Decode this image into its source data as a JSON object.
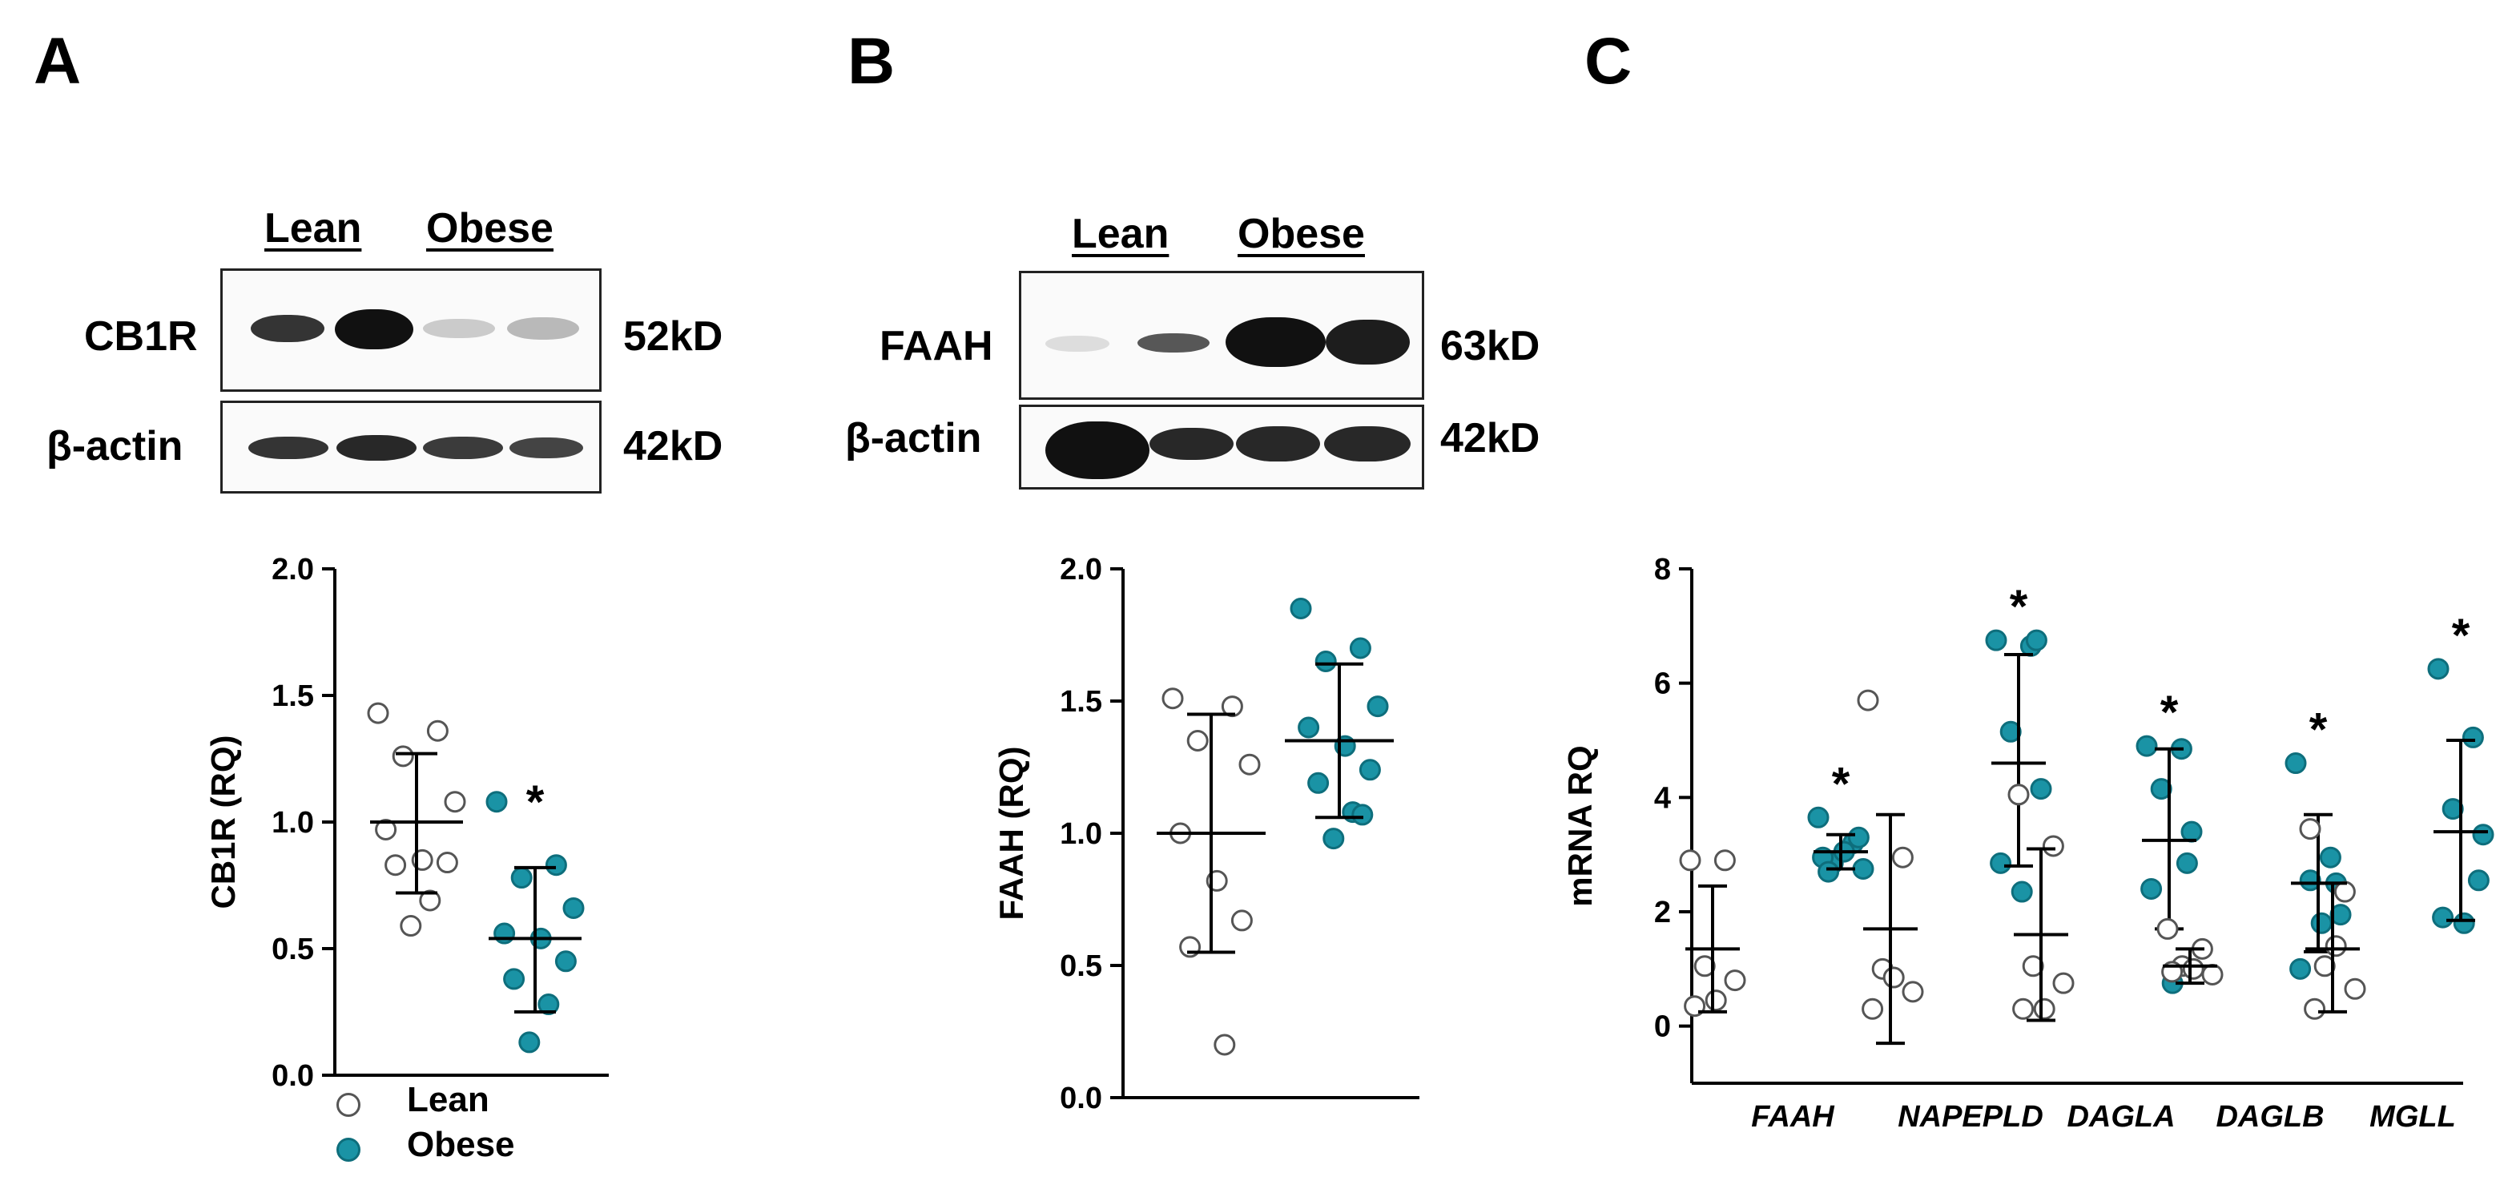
{
  "panels": {
    "a": {
      "letter": "A",
      "headers": [
        "Lean",
        "Obese"
      ],
      "blot_top": {
        "protein": "CB1R",
        "size": "52kD",
        "band_intensity": [
          0.8,
          1.0,
          0.25,
          0.3
        ]
      },
      "blot_bottom": {
        "protein": "β-actin",
        "size": "42kD",
        "band_intensity": [
          0.85,
          0.9,
          0.85,
          0.8
        ]
      }
    },
    "b": {
      "letter": "B",
      "headers": [
        "Lean",
        "Obese"
      ],
      "blot_top": {
        "protein": "FAAH",
        "size": "63kD",
        "band_intensity": [
          0.15,
          0.55,
          1.0,
          0.95
        ]
      },
      "blot_bottom": {
        "protein": "β-actin",
        "size": "42kD",
        "band_intensity": [
          1.0,
          0.85,
          0.85,
          0.85
        ]
      }
    },
    "c": {
      "letter": "C"
    }
  },
  "legend": {
    "lean": "Lean",
    "obese": "Obese"
  },
  "colors": {
    "obese_fill": "#1a93a5",
    "lean_fill": "#ffffff",
    "marker_stroke": "#555555",
    "axis": "#000000"
  },
  "chart_data": [
    {
      "type": "scatter",
      "ylabel": "CB1R (RQ)",
      "ylim": [
        0,
        2
      ],
      "yticks": [
        "0.0",
        "0.5",
        "1.0",
        "1.5",
        "2.0"
      ],
      "groups": [
        {
          "name": "Lean",
          "mean": 1.0,
          "sd_low": 0.72,
          "sd_high": 1.27,
          "values": [
            1.43,
            1.36,
            1.26,
            1.08,
            0.97,
            0.85,
            0.84,
            0.83,
            0.69,
            0.59
          ]
        },
        {
          "name": "Obese",
          "mean": 0.54,
          "sd_low": 0.25,
          "sd_high": 0.82,
          "significant": true,
          "values": [
            1.08,
            0.83,
            0.78,
            0.66,
            0.56,
            0.54,
            0.45,
            0.38,
            0.28,
            0.13
          ]
        }
      ],
      "significance_marker": "*"
    },
    {
      "type": "scatter",
      "ylabel": "FAAH (RQ)",
      "ylim": [
        0,
        2
      ],
      "yticks": [
        "0.0",
        "0.5",
        "1.0",
        "1.5",
        "2.0"
      ],
      "groups": [
        {
          "name": "Lean",
          "mean": 1.0,
          "sd_low": 0.55,
          "sd_high": 1.45,
          "values": [
            1.51,
            1.48,
            1.35,
            1.26,
            1.0,
            0.82,
            0.67,
            0.57,
            0.2
          ]
        },
        {
          "name": "Obese",
          "mean": 1.35,
          "sd_low": 1.06,
          "sd_high": 1.64,
          "values": [
            1.85,
            1.7,
            1.65,
            1.48,
            1.4,
            1.33,
            1.24,
            1.19,
            1.08,
            0.98,
            1.07
          ]
        }
      ]
    },
    {
      "type": "scatter",
      "ylabel": "mRNA RQ",
      "ylim": [
        -1,
        8
      ],
      "yticks": [
        "0",
        "2",
        "4",
        "6",
        "8"
      ],
      "categories": [
        "FAAH",
        "NAPEPLD",
        "DAGLA",
        "DAGLB",
        "MGLL"
      ],
      "series": [
        {
          "name": "Lean",
          "means": [
            1.35,
            1.7,
            1.6,
            1.05,
            1.35
          ],
          "sd_low": [
            0.25,
            -0.3,
            0.1,
            0.75,
            0.25
          ],
          "sd_high": [
            2.45,
            3.7,
            3.1,
            1.35,
            2.5
          ],
          "values": [
            [
              2.9,
              2.9,
              1.05,
              0.8,
              0.35,
              0.45
            ],
            [
              5.7,
              2.95,
              1.0,
              0.6,
              0.3,
              0.85
            ],
            [
              4.05,
              3.15,
              1.05,
              0.75,
              0.3,
              0.3
            ],
            [
              1.7,
              1.35,
              1.05,
              0.9,
              0.95,
              1.0
            ],
            [
              3.45,
              2.35,
              1.05,
              0.65,
              0.3,
              1.4
            ]
          ]
        },
        {
          "name": "Obese",
          "means": [
            3.05,
            4.6,
            3.25,
            2.5,
            3.4
          ],
          "sd_low": [
            2.75,
            2.8,
            1.7,
            1.3,
            1.85
          ],
          "sd_high": [
            3.35,
            6.5,
            4.85,
            3.7,
            5.0
          ],
          "values": [
            [
              3.65,
              3.2,
              2.85,
              2.75,
              2.95,
              3.05,
              3.3,
              2.7
            ],
            [
              6.75,
              6.65,
              5.15,
              4.15,
              2.85,
              2.35,
              6.75
            ],
            [
              4.9,
              4.85,
              4.15,
              3.4,
              2.4,
              0.75,
              2.85
            ],
            [
              4.6,
              2.95,
              2.55,
              1.95,
              1.0,
              1.8,
              2.5
            ],
            [
              6.25,
              5.05,
              3.8,
              3.35,
              1.9,
              1.8,
              2.55
            ]
          ]
        }
      ],
      "significance_marker": "*"
    }
  ]
}
